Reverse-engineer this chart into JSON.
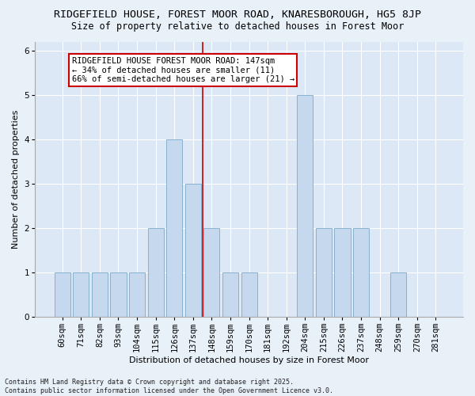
{
  "title1": "RIDGEFIELD HOUSE, FOREST MOOR ROAD, KNARESBOROUGH, HG5 8JP",
  "title2": "Size of property relative to detached houses in Forest Moor",
  "xlabel": "Distribution of detached houses by size in Forest Moor",
  "ylabel": "Number of detached properties",
  "categories": [
    "60sqm",
    "71sqm",
    "82sqm",
    "93sqm",
    "104sqm",
    "115sqm",
    "126sqm",
    "137sqm",
    "148sqm",
    "159sqm",
    "170sqm",
    "181sqm",
    "192sqm",
    "204sqm",
    "215sqm",
    "226sqm",
    "237sqm",
    "248sqm",
    "259sqm",
    "270sqm",
    "281sqm"
  ],
  "values": [
    1,
    1,
    1,
    1,
    1,
    2,
    4,
    3,
    2,
    1,
    1,
    0,
    0,
    5,
    2,
    2,
    2,
    0,
    1,
    0,
    0
  ],
  "bar_color": "#c5d8ed",
  "bar_edge_color": "#7aaac8",
  "highlight_index": 7,
  "highlight_line_color": "#cc0000",
  "annotation_text": "RIDGEFIELD HOUSE FOREST MOOR ROAD: 147sqm\n← 34% of detached houses are smaller (11)\n66% of semi-detached houses are larger (21) →",
  "annotation_box_color": "#ffffff",
  "annotation_box_edge_color": "#cc0000",
  "ylim": [
    0,
    6.2
  ],
  "yticks": [
    0,
    1,
    2,
    3,
    4,
    5,
    6
  ],
  "plot_bg_color": "#dce8f5",
  "fig_bg_color": "#e8f0f8",
  "footer_text": "Contains HM Land Registry data © Crown copyright and database right 2025.\nContains public sector information licensed under the Open Government Licence v3.0.",
  "title1_fontsize": 9.5,
  "title2_fontsize": 8.5,
  "ylabel_fontsize": 8,
  "xlabel_fontsize": 8,
  "tick_fontsize": 7.5,
  "annotation_fontsize": 7.5,
  "footer_fontsize": 6
}
